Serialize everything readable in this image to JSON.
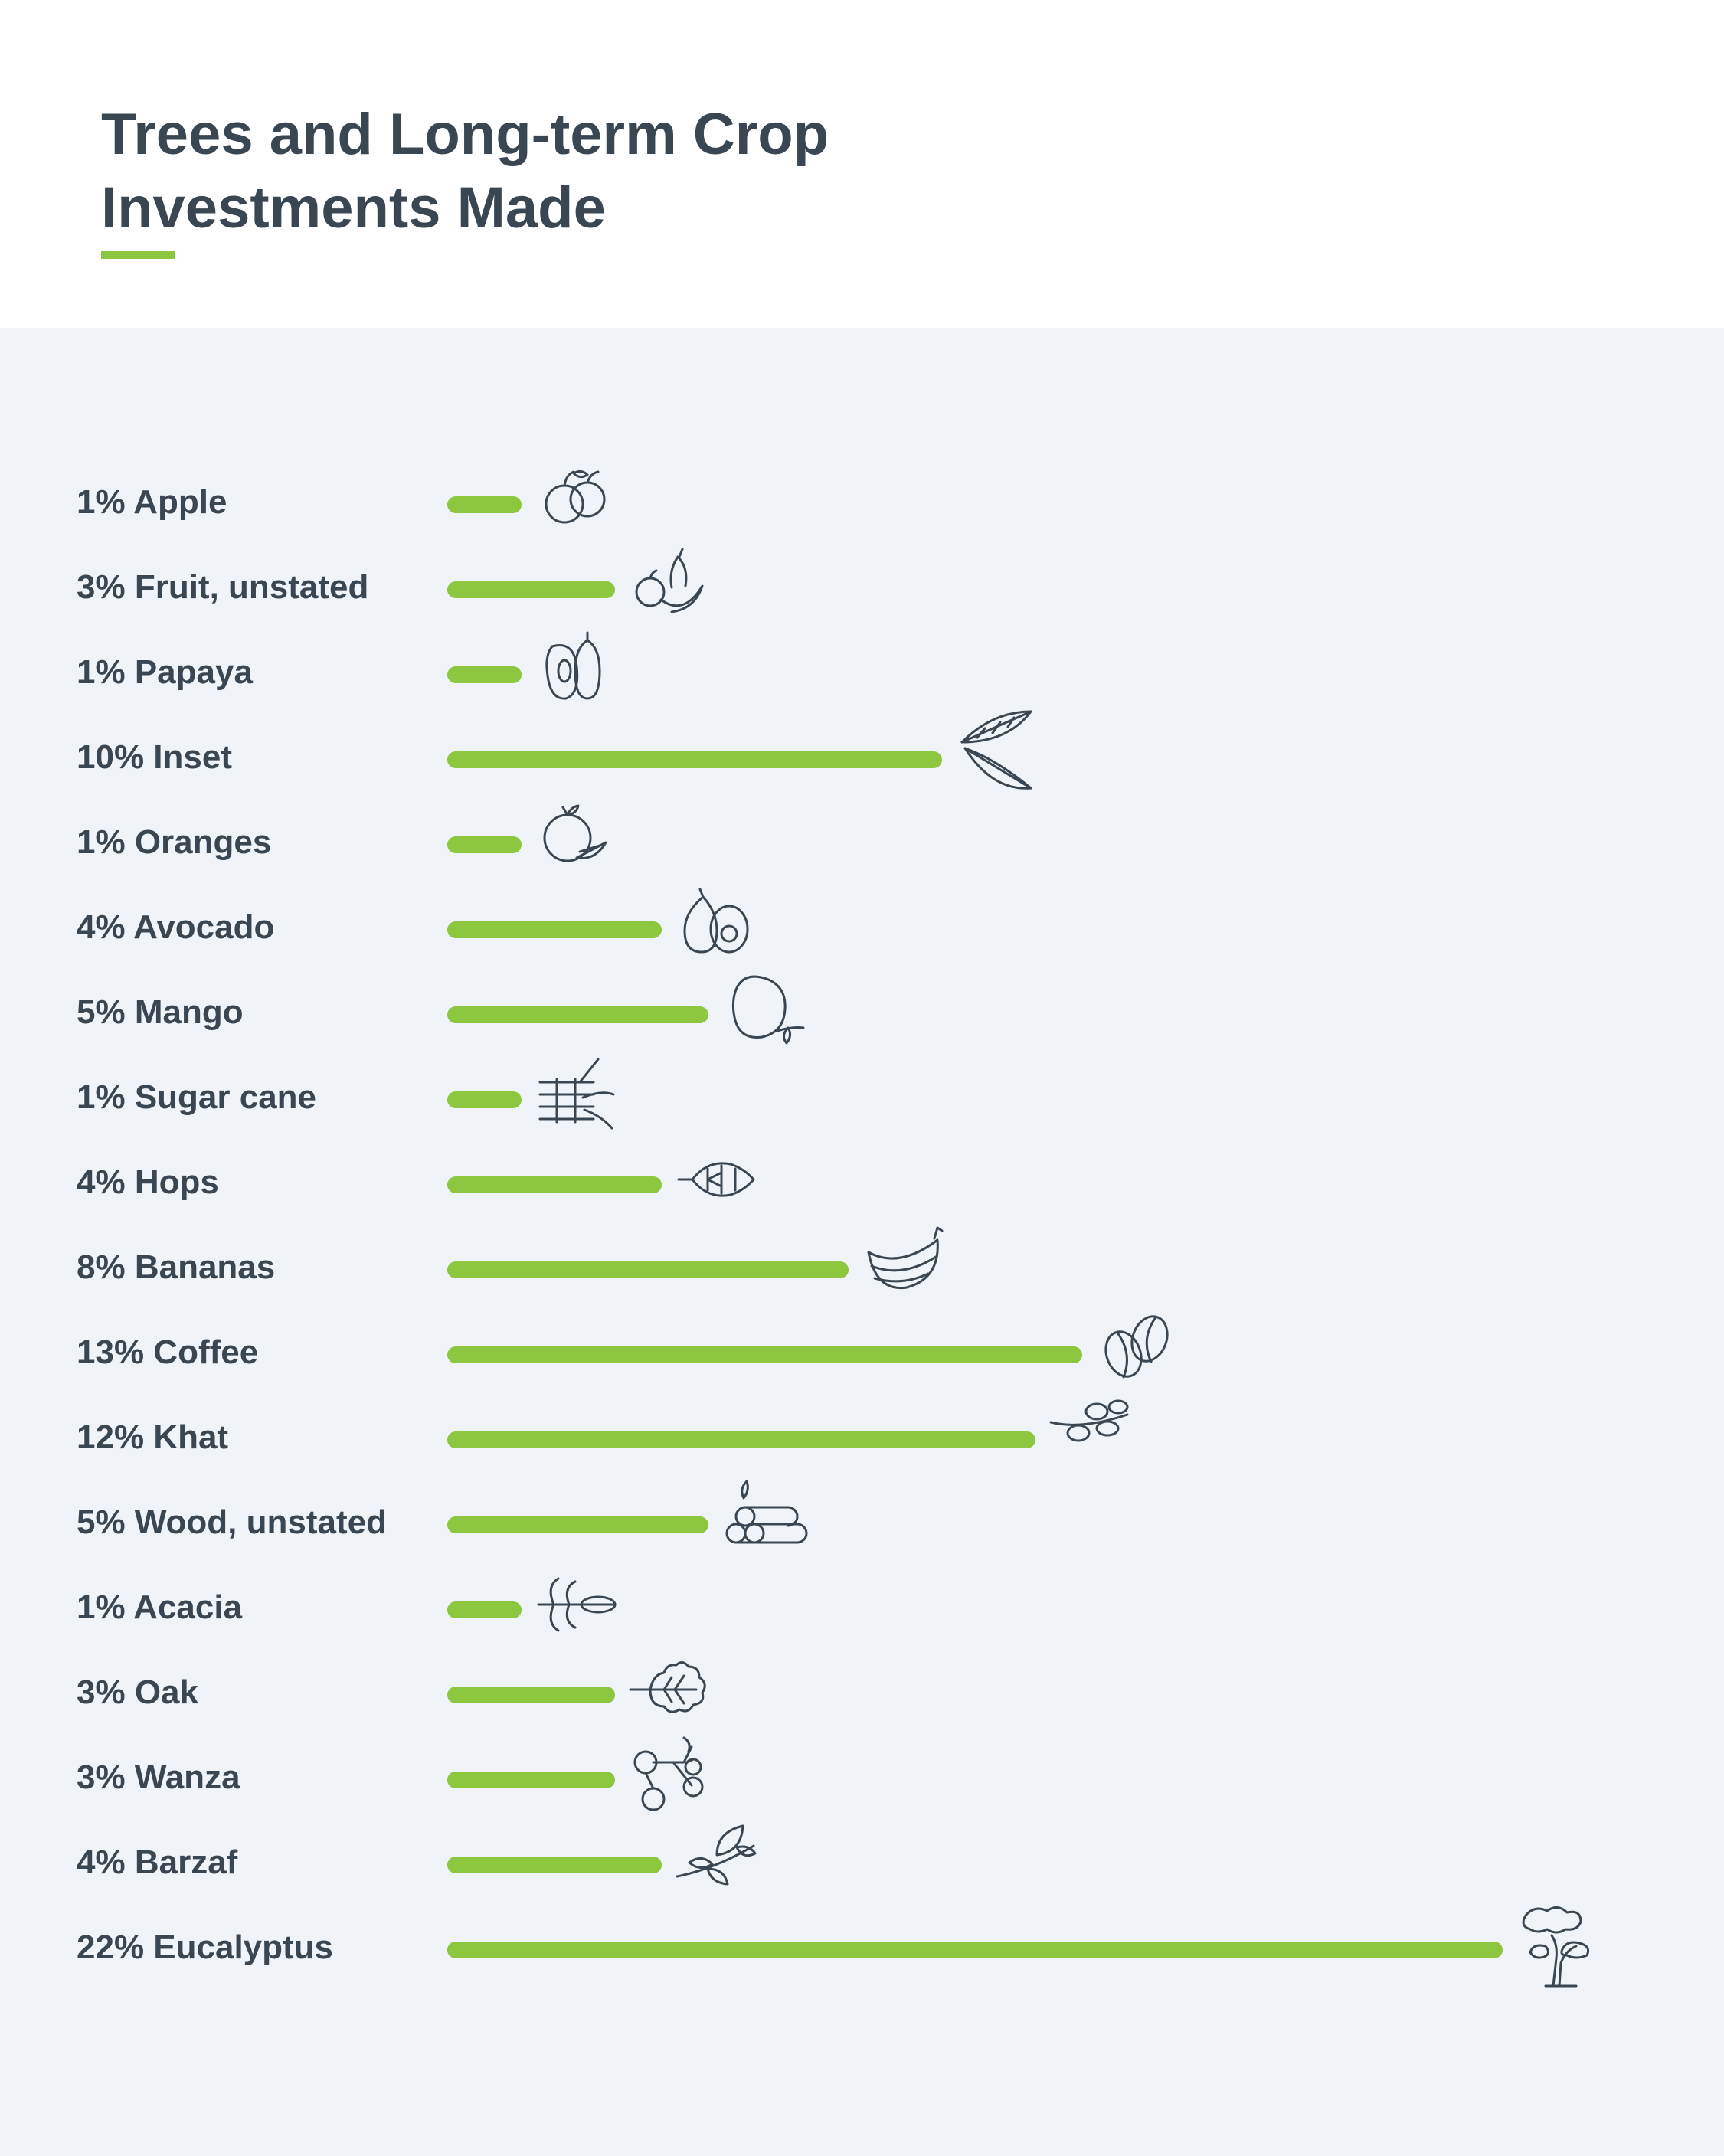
{
  "header": {
    "title_line1": "Trees and Long-term Crop",
    "title_line2": "Investments Made"
  },
  "colors": {
    "bar": "#8dc63f",
    "text": "#3a4753",
    "panel": "#f0f3f8",
    "underline": "#8dc63f"
  },
  "chart_data": {
    "type": "bar",
    "orientation": "horizontal",
    "title": "Trees and Long-term Crop Investments Made",
    "unit": "%",
    "categories": [
      "Apple",
      "Fruit, unstated",
      "Papaya",
      "Inset",
      "Oranges",
      "Avocado",
      "Mango",
      "Sugar cane",
      "Hops",
      "Bananas",
      "Coffee",
      "Khat",
      "Wood, unstated",
      "Acacia",
      "Oak",
      "Wanza",
      "Barzaf",
      "Eucalyptus"
    ],
    "values": [
      1,
      3,
      1,
      10,
      1,
      4,
      5,
      1,
      4,
      8,
      13,
      12,
      5,
      1,
      3,
      3,
      4,
      22
    ],
    "labels": [
      "1% Apple",
      "3% Fruit, unstated",
      "1% Papaya",
      "10% Inset",
      "1% Oranges",
      "4% Avocado",
      "5% Mango",
      "1% Sugar cane",
      "4% Hops",
      "8% Bananas",
      "13% Coffee",
      "12% Khat",
      "5% Wood, unstated",
      "1% Acacia",
      "3% Oak",
      "3% Wanza",
      "4% Barzaf",
      "22% Eucalyptus"
    ],
    "icons": [
      "apple-icon",
      "fruit-icon",
      "papaya-icon",
      "banana-leaf-icon",
      "orange-icon",
      "avocado-icon",
      "mango-icon",
      "sugar-cane-icon",
      "hops-icon",
      "bananas-icon",
      "coffee-bean-icon",
      "leaf-sprig-icon",
      "logs-icon",
      "acacia-leaf-icon",
      "oak-leaf-icon",
      "berries-icon",
      "leaf-branch-icon",
      "tree-icon"
    ],
    "xlim": [
      0,
      22
    ],
    "grid": false,
    "legend": "none"
  }
}
